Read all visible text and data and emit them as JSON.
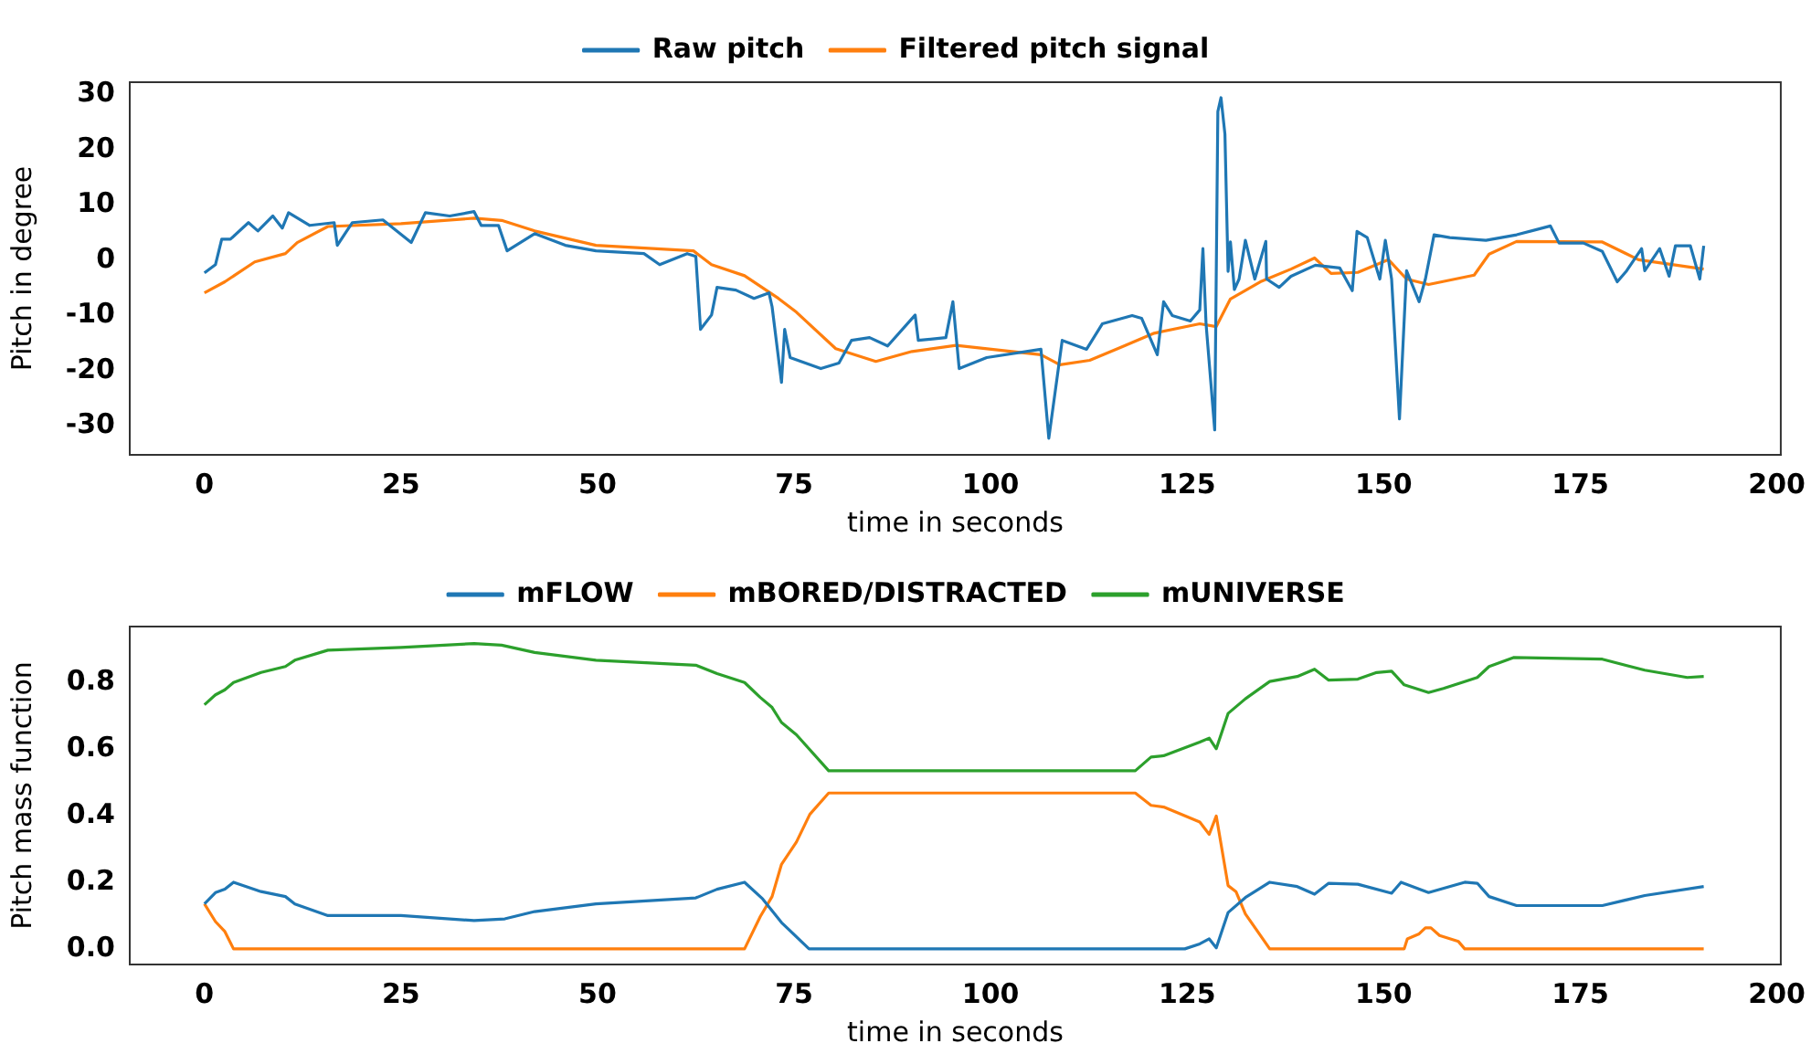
{
  "chart_data": [
    {
      "type": "line",
      "xlabel": "time in seconds",
      "ylabel": "Pitch in degree",
      "xlim": [
        -9.5,
        200.5
      ],
      "xticks": [
        0,
        25,
        50,
        75,
        100,
        125,
        150,
        175,
        200
      ],
      "ylim": [
        -35.2,
        32.2
      ],
      "yticks": [
        -30,
        -20,
        -10,
        0,
        10,
        20,
        30
      ],
      "grid": false,
      "legend": "top",
      "marker": "none",
      "line_style": "solid",
      "series": [
        {
          "name": "Raw pitch",
          "color": "#1f77b4",
          "x": [
            0,
            1.4,
            2.2,
            3.3,
            5.6,
            6.8,
            8.7,
            9.9,
            10.7,
            13.4,
            16.5,
            16.9,
            18.8,
            22.7,
            26.3,
            28.1,
            31.2,
            34.3,
            35.2,
            37.4,
            38.5,
            42,
            45.9,
            49.8,
            55.9,
            57.9,
            61.4,
            62.5,
            63.1,
            64.5,
            65.2,
            67.6,
            69.9,
            71.8,
            72.2,
            73.4,
            73.8,
            74.5,
            78.4,
            80.7,
            82.3,
            84.6,
            86.9,
            90.4,
            90.8,
            94.3,
            95.2,
            96,
            99.5,
            106.4,
            107.4,
            109.1,
            112.2,
            114.2,
            118,
            119.2,
            121.2,
            122,
            123.1,
            125.4,
            126.6,
            127,
            127.4,
            128.5,
            128.9,
            129.3,
            129.8,
            130.2,
            130.5,
            131,
            131.6,
            132.4,
            133.6,
            135,
            135.1,
            136.7,
            138.2,
            141.3,
            144.4,
            146,
            146.6,
            147.9,
            149.5,
            150.2,
            151,
            152,
            152.9,
            154.5,
            155.3,
            156.4,
            158.4,
            163,
            166.9,
            171.2,
            172.3,
            175.4,
            177.8,
            179.7,
            180.9,
            182.8,
            183.2,
            185.1,
            186.3,
            187.1,
            189,
            190.2,
            190.7
          ],
          "values": [
            -2.3,
            -0.8,
            3.8,
            3.8,
            6.8,
            5.3,
            8,
            5.8,
            8.6,
            6.3,
            6.8,
            2.7,
            6.8,
            7.3,
            3.2,
            8.6,
            8,
            8.8,
            6.3,
            6.3,
            1.7,
            4.8,
            2.7,
            1.7,
            1.2,
            -0.8,
            1.2,
            0.7,
            -12.5,
            -9.9,
            -4.9,
            -5.4,
            -6.9,
            -5.9,
            -8.4,
            -22.1,
            -12.5,
            -17.6,
            -19.6,
            -18.6,
            -14.5,
            -14,
            -15.5,
            -9.9,
            -14.5,
            -14,
            -7.5,
            -19.6,
            -17.6,
            -16.1,
            -32.2,
            -14.5,
            -16.1,
            -11.5,
            -10,
            -10.5,
            -17.1,
            -7.5,
            -10,
            -11,
            -9,
            2.1,
            -11.5,
            -30.7,
            26.9,
            29.4,
            22.8,
            -2,
            3.3,
            -5.3,
            -3.4,
            3.6,
            -3.4,
            3.4,
            -3.4,
            -4.9,
            -2.9,
            -0.9,
            -1.4,
            -5.5,
            5.2,
            4.1,
            -3.4,
            3.6,
            -3.4,
            -28.7,
            -1.9,
            -7.5,
            -3.4,
            4.6,
            4.1,
            3.6,
            4.6,
            6.2,
            3.1,
            3.1,
            1.6,
            -3.9,
            -1.9,
            2.1,
            -1.9,
            2.1,
            -2.9,
            2.6,
            2.6,
            -3.4,
            2.6
          ]
        },
        {
          "name": "Filtered pitch signal",
          "color": "#ff7f0e",
          "x": [
            0,
            2.6,
            6.4,
            10.3,
            11.8,
            15.7,
            25,
            34.3,
            37.8,
            42,
            49.8,
            62.2,
            64.5,
            68.7,
            73,
            75.3,
            80.3,
            85.4,
            90,
            95.6,
            106.4,
            108.8,
            112.6,
            116.5,
            120.8,
            126.6,
            128.7,
            130.5,
            134.3,
            138.2,
            141.2,
            143.3,
            146.7,
            150.6,
            152.9,
            155.7,
            161.5,
            163.4,
            166.9,
            177.8,
            182.4,
            190.7
          ],
          "values": [
            -5.9,
            -3.9,
            -0.3,
            1.2,
            3.2,
            6.1,
            6.6,
            7.6,
            7.2,
            5.3,
            2.7,
            1.7,
            -0.8,
            -2.8,
            -6.9,
            -9.4,
            -16,
            -18.3,
            -16.5,
            -15.4,
            -17.1,
            -18.9,
            -18.1,
            -15.8,
            -13.2,
            -11.5,
            -12,
            -7,
            -3.9,
            -1.6,
            0.4,
            -2.4,
            -2.2,
            0.1,
            -3.4,
            -4.4,
            -2.7,
            1.1,
            3.4,
            3.3,
            0.1,
            -1.6
          ]
        }
      ]
    },
    {
      "type": "line",
      "xlabel": "time in seconds",
      "ylabel": "Pitch mass function",
      "xlim": [
        -9.5,
        200.5
      ],
      "xticks": [
        0,
        25,
        50,
        75,
        100,
        125,
        150,
        175,
        200
      ],
      "ylim": [
        -0.047,
        0.968
      ],
      "yticks": [
        {
          "value": 0,
          "label": "0.0"
        },
        0.2,
        0.4,
        0.6,
        0.8
      ],
      "grid": false,
      "legend": "top",
      "marker": "none",
      "line_style": "solid",
      "series": [
        {
          "name": "mFLOW",
          "color": "#1f77b4",
          "x": [
            0,
            1.4,
            2.6,
            3.7,
            7.2,
            10.3,
            11.5,
            15.7,
            25,
            34.3,
            38.2,
            42,
            49.8,
            62.5,
            65.2,
            68.7,
            71,
            73.4,
            76.9,
            124.7,
            126.6,
            127.8,
            128.7,
            130.2,
            132.4,
            135.5,
            139,
            141.2,
            143,
            146.7,
            151,
            152.2,
            155.7,
            160.3,
            161.9,
            163.4,
            166.9,
            177.8,
            183.2,
            190.7
          ],
          "values": [
            0.135,
            0.169,
            0.179,
            0.2,
            0.172,
            0.157,
            0.135,
            0.1,
            0.1,
            0.085,
            0.09,
            0.112,
            0.135,
            0.153,
            0.179,
            0.2,
            0.15,
            0.079,
            0,
            0,
            0.015,
            0.03,
            0.003,
            0.109,
            0.154,
            0.2,
            0.187,
            0.164,
            0.197,
            0.194,
            0.167,
            0.2,
            0.169,
            0.2,
            0.197,
            0.157,
            0.13,
            0.13,
            0.16,
            0.187
          ]
        },
        {
          "name": "mBORED/DISTRACTED",
          "color": "#ff7f0e",
          "x": [
            0,
            1.4,
            2.6,
            3.7,
            68.7,
            70.7,
            72.2,
            73.4,
            75.3,
            77,
            79.4,
            118.4,
            120.4,
            122,
            126.6,
            127.8,
            128.7,
            130.2,
            131.2,
            132.4,
            135.5,
            152.6,
            153,
            154.5,
            155.3,
            156,
            157.1,
            159.5,
            160.3,
            190.7
          ],
          "values": [
            0.135,
            0.082,
            0.052,
            0,
            0,
            0.097,
            0.157,
            0.254,
            0.321,
            0.404,
            0.468,
            0.468,
            0.431,
            0.426,
            0.381,
            0.344,
            0.399,
            0.19,
            0.172,
            0.105,
            0,
            0,
            0.03,
            0.045,
            0.063,
            0.063,
            0.04,
            0.022,
            0,
            0
          ]
        },
        {
          "name": "mUNIVERSE",
          "color": "#2ca02c",
          "x": [
            0,
            1.4,
            2.6,
            3.7,
            7.2,
            10.3,
            11.5,
            15.7,
            25,
            34.3,
            37.8,
            42,
            49.8,
            62.5,
            65.2,
            68.7,
            70.7,
            72.2,
            73.4,
            75.3,
            79.4,
            118.4,
            120.4,
            122,
            126.6,
            127.8,
            128.7,
            130.2,
            132.4,
            135.5,
            139,
            141.2,
            143,
            146.7,
            149.1,
            151,
            152.6,
            155.7,
            157.6,
            160.3,
            161.9,
            163.4,
            166.5,
            177.8,
            183.2,
            188.6,
            190.7
          ],
          "values": [
            0.733,
            0.763,
            0.778,
            0.8,
            0.83,
            0.848,
            0.867,
            0.897,
            0.905,
            0.917,
            0.912,
            0.89,
            0.867,
            0.852,
            0.827,
            0.8,
            0.755,
            0.725,
            0.68,
            0.643,
            0.535,
            0.535,
            0.576,
            0.58,
            0.621,
            0.633,
            0.601,
            0.707,
            0.751,
            0.803,
            0.818,
            0.84,
            0.807,
            0.81,
            0.83,
            0.834,
            0.793,
            0.77,
            0.782,
            0.803,
            0.815,
            0.848,
            0.875,
            0.87,
            0.837,
            0.815,
            0.818
          ]
        }
      ]
    }
  ]
}
